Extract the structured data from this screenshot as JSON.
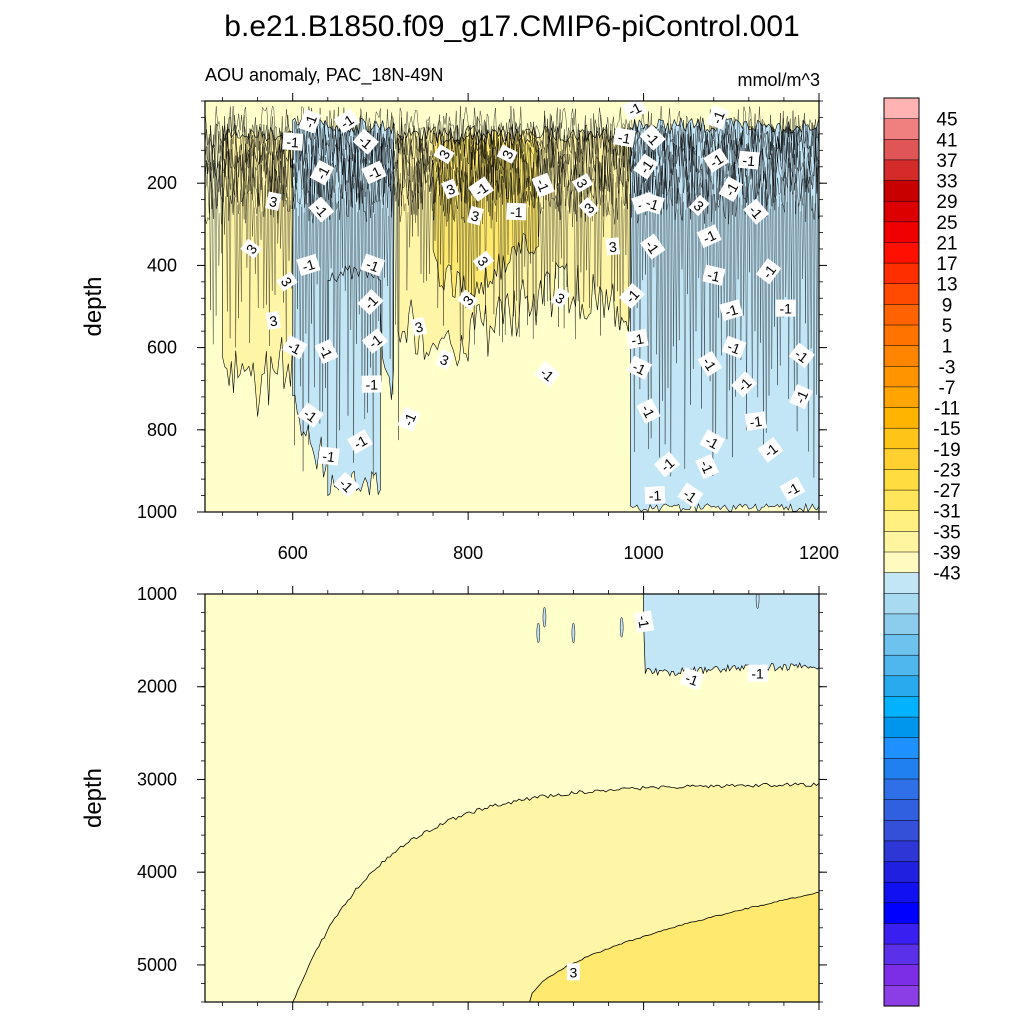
{
  "chart_data": {
    "type": "contour",
    "title": "b.e21.B1850.f09_g17.CMIP6-piControl.001",
    "subtitle_left": "AOU anomaly, PAC_18N-49N",
    "subtitle_right": "mmol/m^3",
    "xrange": [
      500,
      1200
    ],
    "x_ticks": [
      "600",
      "800",
      "1000",
      "1200"
    ],
    "x_tick_values": [
      600,
      800,
      1000,
      1200
    ],
    "panels": [
      {
        "name": "upper",
        "ylabel": "depth",
        "yrange": [
          0,
          1000
        ],
        "y_ticks": [
          "200",
          "400",
          "600",
          "800",
          "1000"
        ],
        "y_tick_values": [
          200,
          400,
          600,
          800,
          1000
        ],
        "contour_labels": [
          {
            "text": "-1",
            "x": 620,
            "y": 50
          },
          {
            "text": "-1",
            "x": 662,
            "y": 50
          },
          {
            "text": "-1",
            "x": 600,
            "y": 100
          },
          {
            "text": "-1",
            "x": 683,
            "y": 100
          },
          {
            "text": "-1",
            "x": 634,
            "y": 175
          },
          {
            "text": "-1",
            "x": 693,
            "y": 175
          },
          {
            "text": "3",
            "x": 578,
            "y": 245
          },
          {
            "text": "-1",
            "x": 632,
            "y": 265
          },
          {
            "text": "3",
            "x": 553,
            "y": 360
          },
          {
            "text": "-1",
            "x": 618,
            "y": 400
          },
          {
            "text": "-1",
            "x": 691,
            "y": 400
          },
          {
            "text": "3",
            "x": 593,
            "y": 440
          },
          {
            "text": "-1",
            "x": 689,
            "y": 490
          },
          {
            "text": "3",
            "x": 578,
            "y": 535
          },
          {
            "text": "-1",
            "x": 602,
            "y": 600
          },
          {
            "text": "-1",
            "x": 638,
            "y": 610
          },
          {
            "text": "-1",
            "x": 694,
            "y": 585
          },
          {
            "text": "-1",
            "x": 690,
            "y": 690
          },
          {
            "text": "-1",
            "x": 620,
            "y": 765
          },
          {
            "text": "-1",
            "x": 733,
            "y": 775
          },
          {
            "text": "-1",
            "x": 677,
            "y": 830
          },
          {
            "text": "-1",
            "x": 641,
            "y": 865
          },
          {
            "text": "-1",
            "x": 661,
            "y": 935
          },
          {
            "text": "3",
            "x": 773,
            "y": 130
          },
          {
            "text": "3",
            "x": 780,
            "y": 215
          },
          {
            "text": "3",
            "x": 808,
            "y": 280
          },
          {
            "text": "3",
            "x": 817,
            "y": 390
          },
          {
            "text": "3",
            "x": 800,
            "y": 485
          },
          {
            "text": "3",
            "x": 744,
            "y": 550
          },
          {
            "text": "3",
            "x": 773,
            "y": 630
          },
          {
            "text": "3",
            "x": 930,
            "y": 200
          },
          {
            "text": "3",
            "x": 938,
            "y": 260
          },
          {
            "text": "3",
            "x": 965,
            "y": 355
          },
          {
            "text": "3",
            "x": 905,
            "y": 480
          },
          {
            "text": "-1",
            "x": 885,
            "y": 205
          },
          {
            "text": "-1",
            "x": 815,
            "y": 215
          },
          {
            "text": "-1",
            "x": 855,
            "y": 270
          },
          {
            "text": "-1",
            "x": 890,
            "y": 665
          },
          {
            "text": "3",
            "x": 845,
            "y": 130
          },
          {
            "text": "-1",
            "x": 990,
            "y": 20
          },
          {
            "text": "-1",
            "x": 978,
            "y": 90
          },
          {
            "text": "-1",
            "x": 1010,
            "y": 90
          },
          {
            "text": "-1",
            "x": 1003,
            "y": 160
          },
          {
            "text": "-1",
            "x": 1000,
            "y": 250
          },
          {
            "text": "-1",
            "x": 1010,
            "y": 250
          },
          {
            "text": "-1",
            "x": 1010,
            "y": 355
          },
          {
            "text": "-1",
            "x": 987,
            "y": 475
          },
          {
            "text": "-1",
            "x": 993,
            "y": 580
          },
          {
            "text": "-1",
            "x": 995,
            "y": 650
          },
          {
            "text": "-1",
            "x": 1005,
            "y": 755
          },
          {
            "text": "-1",
            "x": 1027,
            "y": 885
          },
          {
            "text": "-1",
            "x": 1013,
            "y": 960
          },
          {
            "text": "-1",
            "x": 1053,
            "y": 960
          },
          {
            "text": "-1",
            "x": 1085,
            "y": 40
          },
          {
            "text": "-1",
            "x": 1083,
            "y": 145
          },
          {
            "text": "-1",
            "x": 1120,
            "y": 145
          },
          {
            "text": "3",
            "x": 1063,
            "y": 255
          },
          {
            "text": "-1",
            "x": 1100,
            "y": 215
          },
          {
            "text": "-1",
            "x": 1075,
            "y": 330
          },
          {
            "text": "-1",
            "x": 1080,
            "y": 425
          },
          {
            "text": "-1",
            "x": 1128,
            "y": 270
          },
          {
            "text": "-1",
            "x": 1143,
            "y": 415
          },
          {
            "text": "-1",
            "x": 1100,
            "y": 510
          },
          {
            "text": "-1",
            "x": 1103,
            "y": 600
          },
          {
            "text": "-1",
            "x": 1075,
            "y": 640
          },
          {
            "text": "-1",
            "x": 1115,
            "y": 690
          },
          {
            "text": "-1",
            "x": 1128,
            "y": 780
          },
          {
            "text": "-1",
            "x": 1078,
            "y": 830
          },
          {
            "text": "-1",
            "x": 1072,
            "y": 890
          },
          {
            "text": "-1",
            "x": 1145,
            "y": 850
          },
          {
            "text": "-1",
            "x": 1162,
            "y": 505
          },
          {
            "text": "-1",
            "x": 1180,
            "y": 620
          },
          {
            "text": "-1",
            "x": 1180,
            "y": 720
          },
          {
            "text": "-1",
            "x": 1170,
            "y": 945
          }
        ]
      },
      {
        "name": "lower",
        "ylabel": "depth",
        "yrange": [
          1000,
          5400
        ],
        "y_ticks": [
          "1000",
          "2000",
          "3000",
          "4000",
          "5000"
        ],
        "y_tick_values": [
          1000,
          2000,
          3000,
          4000,
          5000
        ],
        "contour_labels": [
          {
            "text": "-1",
            "x": 1000,
            "y": 1300
          },
          {
            "text": "-1",
            "x": 1055,
            "y": 1920
          },
          {
            "text": "-1",
            "x": 1130,
            "y": 1860
          },
          {
            "text": "3",
            "x": 920,
            "y": 5080
          }
        ]
      }
    ],
    "colorbar": {
      "labels": [
        "45",
        "41",
        "37",
        "33",
        "29",
        "25",
        "21",
        "17",
        "13",
        "9",
        "5",
        "1",
        "-3",
        "-7",
        "-11",
        "-15",
        "-19",
        "-23",
        "-27",
        "-31",
        "-35",
        "-39",
        "-43"
      ],
      "colors": [
        "#ffb3b3",
        "#f08080",
        "#e05555",
        "#d42a2a",
        "#c80000",
        "#dc0000",
        "#f00000",
        "#ff1000",
        "#ff2e00",
        "#ff4a00",
        "#ff6200",
        "#ff7400",
        "#ff8400",
        "#ff9400",
        "#ffa400",
        "#ffb400",
        "#ffc418",
        "#ffd030",
        "#ffdc40",
        "#ffe55a",
        "#fff080",
        "#fff5a0",
        "#fffac0",
        "#c3e6f7",
        "#a8daf2",
        "#8ccdee",
        "#6ec2ee",
        "#4fb6ee",
        "#2aaaee",
        "#00b2ff",
        "#0096ee",
        "#1e90ff",
        "#2080f0",
        "#2f70e8",
        "#3060e0",
        "#3550d8",
        "#2e36d6",
        "#2020e0",
        "#1010f0",
        "#0000ff",
        "#3a20f0",
        "#5a30e8",
        "#7b2ee6",
        "#8c3ee6"
      ]
    },
    "fills": {
      "background": "#ffffcc",
      "level1": "#fff5a6",
      "level3": "#ffea6f",
      "neg": "#c3e6f7"
    }
  }
}
